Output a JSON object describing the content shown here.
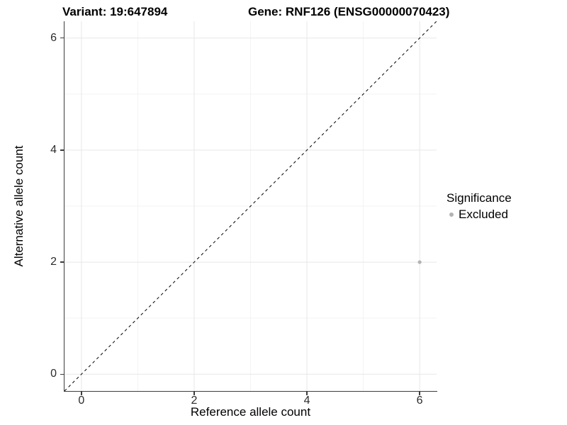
{
  "chart_data": {
    "type": "scatter",
    "titles": {
      "left": "Variant: 19:647894",
      "right": "Gene: RNF126 (ENSG00000070423)"
    },
    "xlabel": "Reference allele count",
    "ylabel": "Alternative allele count",
    "xlim": [
      -0.3,
      6.3
    ],
    "ylim": [
      -0.3,
      6.3
    ],
    "x_major_ticks": [
      0,
      2,
      4,
      6
    ],
    "x_minor_ticks": [
      1,
      3,
      5
    ],
    "y_major_ticks": [
      0,
      2,
      4,
      6
    ],
    "y_minor_ticks": [
      1,
      3,
      5
    ],
    "x_tick_labels": [
      "0",
      "2",
      "4",
      "6"
    ],
    "y_tick_labels": [
      "0",
      "2",
      "4",
      "6"
    ],
    "grid": "major-and-minor",
    "reference_line": {
      "type": "identity y=x",
      "style": "dashed",
      "color": "#000000"
    },
    "series": [
      {
        "name": "Excluded",
        "color": "#b3b3b3",
        "points": [
          {
            "x": 6,
            "y": 2
          }
        ]
      }
    ],
    "legend": {
      "title": "Significance",
      "position": "right",
      "entries": [
        {
          "label": "Excluded",
          "color": "#b3b3b3"
        }
      ]
    }
  },
  "colors": {
    "background": "#ffffff",
    "grid_major": "#e7e7e7",
    "grid_minor": "#f3f3f3",
    "axis_line": "#3c3c3c",
    "tick_text": "#2b2b2b",
    "title_text": "#000000",
    "point": "#b3b3b3"
  }
}
